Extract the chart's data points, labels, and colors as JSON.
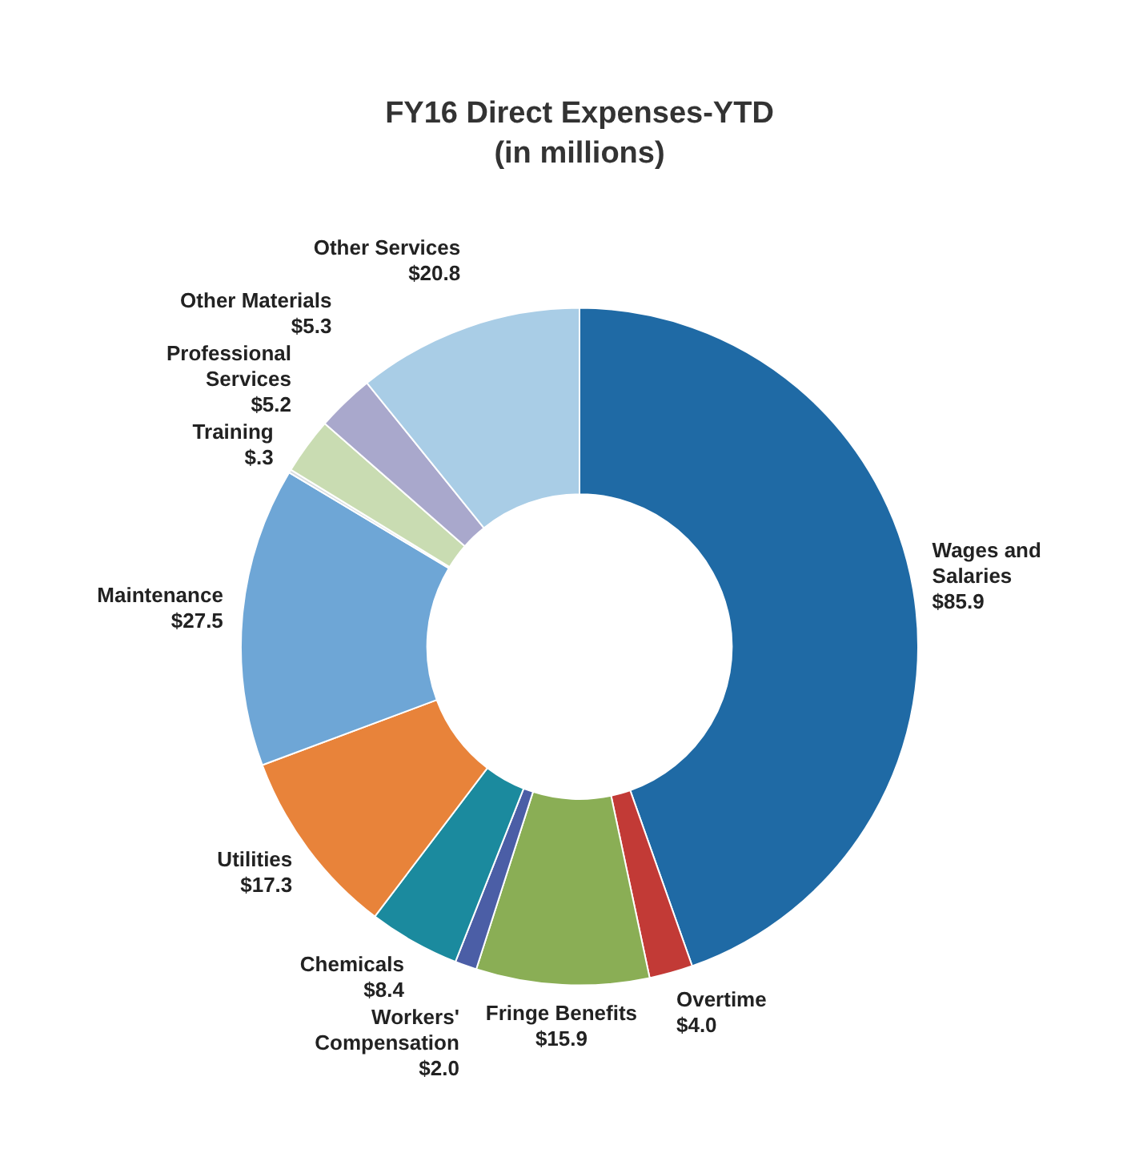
{
  "chart_data": {
    "type": "donut",
    "title": "FY16 Direct Expenses-YTD",
    "subtitle": "(in millions)",
    "categories": [
      "Wages and Salaries",
      "Overtime",
      "Fringe Benefits",
      "Workers' Compensation",
      "Chemicals",
      "Utilities",
      "Maintenance",
      "Training",
      "Professional Services",
      "Other Materials",
      "Other Services"
    ],
    "values": [
      85.9,
      4.0,
      15.9,
      2.0,
      8.4,
      17.3,
      27.5,
      0.3,
      5.2,
      5.3,
      20.8
    ],
    "value_labels": [
      "$85.9",
      "$4.0",
      "$15.9",
      "$2.0",
      "$8.4",
      "$17.3",
      "$27.5",
      "$.3",
      "$5.2",
      "$5.3",
      "$20.8"
    ],
    "colors": [
      "#1f6aa5",
      "#c23a36",
      "#8aae55",
      "#4b5ea6",
      "#1b8a9e",
      "#e8833a",
      "#6ea6d6",
      "#d8dde0",
      "#c9dcb2",
      "#a9a8cc",
      "#a9cde6"
    ],
    "legend": false
  }
}
